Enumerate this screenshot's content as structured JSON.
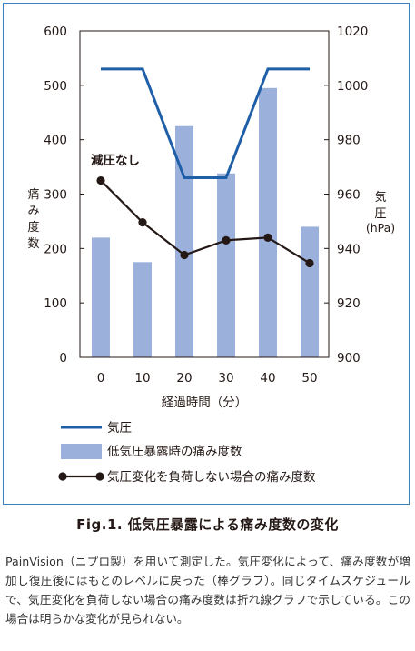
{
  "chart_data": {
    "type": "bar+line",
    "x": [
      0,
      10,
      20,
      30,
      40,
      50
    ],
    "xlabel": "経過時間（分）",
    "y_left": {
      "label": "痛み度数",
      "ylim": [
        0,
        600
      ],
      "ticks": [
        0,
        100,
        200,
        300,
        400,
        500,
        600
      ]
    },
    "y_right": {
      "label": "気圧",
      "unit": "(hPa)",
      "ylim": [
        900,
        1020
      ],
      "ticks": [
        900,
        920,
        940,
        960,
        980,
        1000,
        1020
      ]
    },
    "series": [
      {
        "name": "気圧",
        "kind": "line",
        "axis": "right",
        "color": "#1f5fa8",
        "points": [
          [
            0,
            1006
          ],
          [
            10,
            1006
          ],
          [
            20,
            966
          ],
          [
            30,
            966
          ],
          [
            40,
            1006
          ],
          [
            50,
            1006
          ]
        ]
      },
      {
        "name": "低気圧暴露時の痛み度数",
        "kind": "bar",
        "axis": "left",
        "color": "#9bb1db",
        "values": [
          220,
          175,
          425,
          338,
          495,
          240
        ]
      },
      {
        "name": "気圧変化を負荷しない場合の痛み度数",
        "kind": "line-marker",
        "axis": "left",
        "color": "#231815",
        "values": [
          325,
          248,
          188,
          215,
          220,
          173
        ]
      }
    ],
    "annotations": [
      {
        "text": "減圧なし"
      }
    ],
    "grid": false,
    "legend_position": "bottom"
  },
  "caption": "Fig.1. 低気圧暴露による痛み度数の変化",
  "note": "PainVision（ニプロ製）を用いて測定した。気圧変化によって、痛み度数が増加し復圧後にはもとのレベルに戻った（棒グラフ）。同じタイムスケジュールで、気圧変化を負荷しない場合の痛み度数は折れ線グラフで示している。この場合は明らかな変化が見られない。"
}
